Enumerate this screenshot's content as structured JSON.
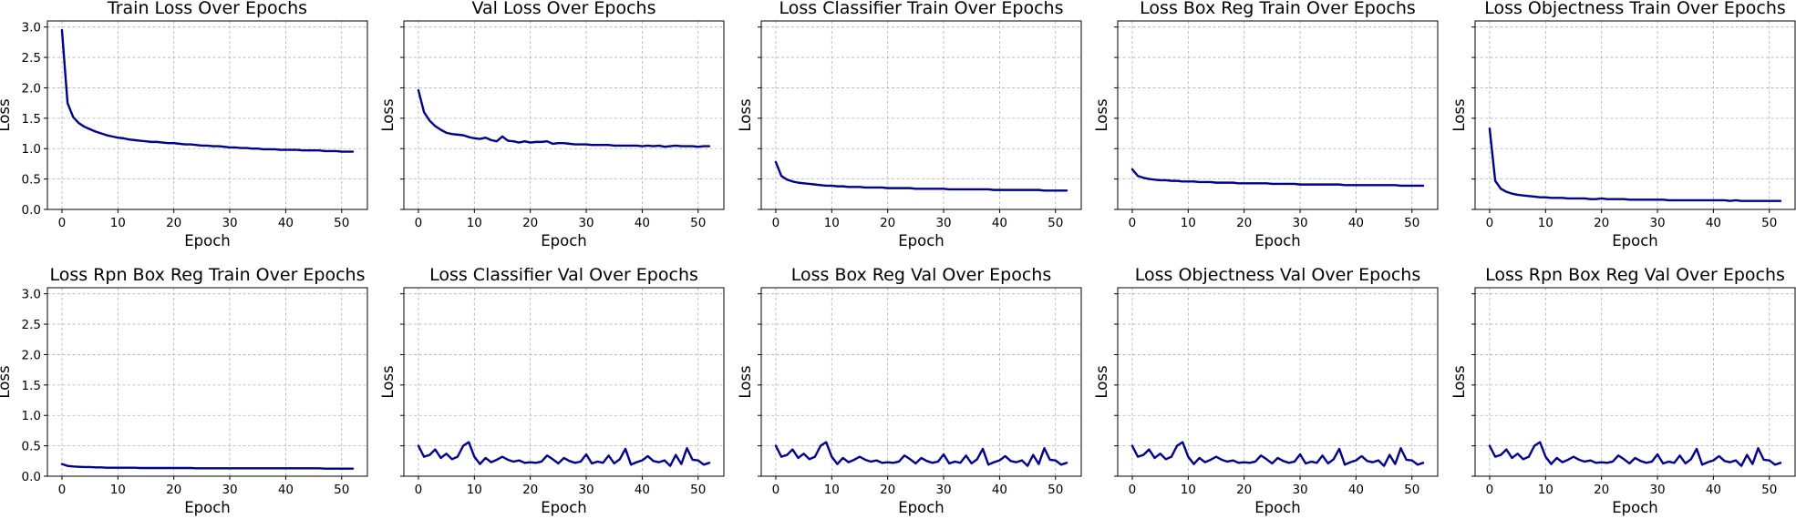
{
  "colors": {
    "line": "#00008b",
    "grid": "#b0b0b0"
  },
  "chart_data": [
    {
      "type": "line",
      "title": "Train Loss Over Epochs",
      "xlabel": "Epoch",
      "ylabel": "Loss",
      "x_ticks": [
        0,
        10,
        20,
        30,
        40,
        50
      ],
      "y_ticks": [
        "0.0",
        "0.5",
        "1.0",
        "1.5",
        "2.0",
        "2.5",
        "3.0"
      ],
      "y_tick_labels_shown": true,
      "xlim": [
        -2.6,
        54.6
      ],
      "ylim": [
        0,
        3.1
      ],
      "grid": true,
      "series": [
        {
          "values": [
            2.95,
            1.75,
            1.52,
            1.42,
            1.36,
            1.32,
            1.28,
            1.25,
            1.22,
            1.2,
            1.18,
            1.17,
            1.15,
            1.14,
            1.13,
            1.12,
            1.11,
            1.11,
            1.1,
            1.09,
            1.09,
            1.08,
            1.07,
            1.07,
            1.06,
            1.05,
            1.05,
            1.04,
            1.04,
            1.03,
            1.02,
            1.02,
            1.01,
            1.01,
            1.0,
            1.0,
            0.99,
            0.99,
            0.99,
            0.98,
            0.98,
            0.98,
            0.98,
            0.97,
            0.97,
            0.97,
            0.97,
            0.96,
            0.96,
            0.96,
            0.95,
            0.95,
            0.95
          ]
        }
      ]
    },
    {
      "type": "line",
      "title": "Val Loss Over Epochs",
      "xlabel": "Epoch",
      "ylabel": "Loss",
      "x_ticks": [
        0,
        10,
        20,
        30,
        40,
        50
      ],
      "y_ticks": [
        "0.0",
        "0.5",
        "1.0",
        "1.5",
        "2.0",
        "2.5",
        "3.0"
      ],
      "y_tick_labels_shown": false,
      "xlim": [
        -2.6,
        54.6
      ],
      "ylim": [
        0,
        3.1
      ],
      "grid": true,
      "series": [
        {
          "values": [
            1.96,
            1.6,
            1.46,
            1.37,
            1.31,
            1.26,
            1.24,
            1.23,
            1.22,
            1.19,
            1.17,
            1.16,
            1.18,
            1.14,
            1.12,
            1.2,
            1.13,
            1.12,
            1.1,
            1.12,
            1.1,
            1.11,
            1.11,
            1.12,
            1.08,
            1.09,
            1.09,
            1.08,
            1.07,
            1.07,
            1.07,
            1.06,
            1.06,
            1.06,
            1.06,
            1.05,
            1.05,
            1.05,
            1.05,
            1.05,
            1.04,
            1.05,
            1.04,
            1.05,
            1.03,
            1.04,
            1.05,
            1.04,
            1.04,
            1.04,
            1.03,
            1.04,
            1.04
          ]
        }
      ]
    },
    {
      "type": "line",
      "title": "Loss Classifier Train Over Epochs",
      "xlabel": "Epoch",
      "ylabel": "Loss",
      "x_ticks": [
        0,
        10,
        20,
        30,
        40,
        50
      ],
      "y_ticks": [
        "0.0",
        "0.5",
        "1.0",
        "1.5",
        "2.0",
        "2.5",
        "3.0"
      ],
      "y_tick_labels_shown": false,
      "xlim": [
        -2.6,
        54.6
      ],
      "ylim": [
        0,
        3.1
      ],
      "grid": true,
      "series": [
        {
          "values": [
            0.78,
            0.55,
            0.49,
            0.46,
            0.44,
            0.43,
            0.42,
            0.41,
            0.4,
            0.39,
            0.39,
            0.38,
            0.38,
            0.37,
            0.37,
            0.37,
            0.36,
            0.36,
            0.36,
            0.36,
            0.35,
            0.35,
            0.35,
            0.35,
            0.35,
            0.34,
            0.34,
            0.34,
            0.34,
            0.34,
            0.34,
            0.33,
            0.33,
            0.33,
            0.33,
            0.33,
            0.33,
            0.33,
            0.33,
            0.32,
            0.32,
            0.32,
            0.32,
            0.32,
            0.32,
            0.32,
            0.32,
            0.32,
            0.31,
            0.31,
            0.31,
            0.31,
            0.31
          ]
        }
      ]
    },
    {
      "type": "line",
      "title": "Loss Box Reg Train Over Epochs",
      "xlabel": "Epoch",
      "ylabel": "Loss",
      "x_ticks": [
        0,
        10,
        20,
        30,
        40,
        50
      ],
      "y_ticks": [
        "0.0",
        "0.5",
        "1.0",
        "1.5",
        "2.0",
        "2.5",
        "3.0"
      ],
      "y_tick_labels_shown": false,
      "xlim": [
        -2.6,
        54.6
      ],
      "ylim": [
        0,
        3.1
      ],
      "grid": true,
      "series": [
        {
          "values": [
            0.66,
            0.55,
            0.52,
            0.5,
            0.49,
            0.48,
            0.48,
            0.47,
            0.47,
            0.46,
            0.46,
            0.46,
            0.45,
            0.45,
            0.45,
            0.44,
            0.44,
            0.44,
            0.44,
            0.43,
            0.43,
            0.43,
            0.43,
            0.43,
            0.43,
            0.42,
            0.42,
            0.42,
            0.42,
            0.42,
            0.41,
            0.41,
            0.41,
            0.41,
            0.41,
            0.41,
            0.41,
            0.41,
            0.4,
            0.4,
            0.4,
            0.4,
            0.4,
            0.4,
            0.4,
            0.4,
            0.4,
            0.4,
            0.39,
            0.39,
            0.39,
            0.39,
            0.39
          ]
        }
      ]
    },
    {
      "type": "line",
      "title": "Loss Objectness Train Over Epochs",
      "xlabel": "Epoch",
      "ylabel": "Loss",
      "x_ticks": [
        0,
        10,
        20,
        30,
        40,
        50
      ],
      "y_ticks": [
        "0.0",
        "0.5",
        "1.0",
        "1.5",
        "2.0",
        "2.5",
        "3.0"
      ],
      "y_tick_labels_shown": false,
      "xlim": [
        -2.6,
        54.6
      ],
      "ylim": [
        0,
        3.1
      ],
      "grid": true,
      "series": [
        {
          "values": [
            1.33,
            0.47,
            0.34,
            0.29,
            0.26,
            0.24,
            0.23,
            0.22,
            0.21,
            0.2,
            0.2,
            0.19,
            0.19,
            0.19,
            0.18,
            0.18,
            0.18,
            0.18,
            0.17,
            0.17,
            0.18,
            0.17,
            0.17,
            0.17,
            0.17,
            0.16,
            0.16,
            0.16,
            0.16,
            0.16,
            0.16,
            0.16,
            0.15,
            0.15,
            0.15,
            0.15,
            0.15,
            0.15,
            0.15,
            0.15,
            0.15,
            0.15,
            0.15,
            0.14,
            0.15,
            0.14,
            0.14,
            0.14,
            0.14,
            0.14,
            0.14,
            0.14,
            0.14
          ]
        }
      ]
    },
    {
      "type": "line",
      "title": "Loss Rpn Box Reg Train Over Epochs",
      "xlabel": "Epoch",
      "ylabel": "Loss",
      "x_ticks": [
        0,
        10,
        20,
        30,
        40,
        50
      ],
      "y_ticks": [
        "0.0",
        "0.5",
        "1.0",
        "1.5",
        "2.0",
        "2.5",
        "3.0"
      ],
      "y_tick_labels_shown": true,
      "xlim": [
        -2.6,
        54.6
      ],
      "ylim": [
        0,
        3.1
      ],
      "grid": true,
      "series": [
        {
          "values": [
            0.2,
            0.17,
            0.16,
            0.155,
            0.15,
            0.15,
            0.145,
            0.145,
            0.14,
            0.14,
            0.14,
            0.14,
            0.14,
            0.14,
            0.135,
            0.135,
            0.135,
            0.135,
            0.135,
            0.135,
            0.135,
            0.135,
            0.135,
            0.135,
            0.13,
            0.13,
            0.13,
            0.13,
            0.13,
            0.13,
            0.13,
            0.13,
            0.13,
            0.13,
            0.13,
            0.13,
            0.13,
            0.13,
            0.13,
            0.13,
            0.13,
            0.13,
            0.13,
            0.13,
            0.13,
            0.13,
            0.13,
            0.125,
            0.125,
            0.125,
            0.125,
            0.125,
            0.125
          ]
        }
      ]
    },
    {
      "type": "line",
      "title": "Loss Classifier Val Over Epochs",
      "xlabel": "Epoch",
      "ylabel": "Loss",
      "x_ticks": [
        0,
        10,
        20,
        30,
        40,
        50
      ],
      "y_ticks": [
        "0.0",
        "0.5",
        "1.0",
        "1.5",
        "2.0",
        "2.5",
        "3.0"
      ],
      "y_tick_labels_shown": false,
      "xlim": [
        -2.6,
        54.6
      ],
      "ylim": [
        0,
        3.1
      ],
      "grid": true,
      "series": [
        {
          "values": [
            0.5,
            0.32,
            0.35,
            0.44,
            0.3,
            0.37,
            0.28,
            0.32,
            0.5,
            0.56,
            0.32,
            0.2,
            0.3,
            0.23,
            0.27,
            0.32,
            0.27,
            0.24,
            0.26,
            0.22,
            0.23,
            0.22,
            0.24,
            0.34,
            0.28,
            0.21,
            0.3,
            0.25,
            0.22,
            0.24,
            0.36,
            0.21,
            0.24,
            0.22,
            0.34,
            0.21,
            0.28,
            0.45,
            0.19,
            0.23,
            0.26,
            0.33,
            0.25,
            0.23,
            0.26,
            0.17,
            0.35,
            0.2,
            0.46,
            0.27,
            0.26,
            0.19,
            0.22
          ]
        }
      ]
    },
    {
      "type": "line",
      "title": "Loss Box Reg Val Over Epochs",
      "xlabel": "Epoch",
      "ylabel": "Loss",
      "x_ticks": [
        0,
        10,
        20,
        30,
        40,
        50
      ],
      "y_ticks": [
        "0.0",
        "0.5",
        "1.0",
        "1.5",
        "2.0",
        "2.5",
        "3.0"
      ],
      "y_tick_labels_shown": false,
      "xlim": [
        -2.6,
        54.6
      ],
      "ylim": [
        0,
        3.1
      ],
      "grid": true,
      "series": [
        {
          "values": [
            0.5,
            0.32,
            0.35,
            0.44,
            0.3,
            0.37,
            0.28,
            0.32,
            0.5,
            0.56,
            0.32,
            0.2,
            0.3,
            0.23,
            0.27,
            0.32,
            0.27,
            0.24,
            0.26,
            0.22,
            0.23,
            0.22,
            0.24,
            0.34,
            0.28,
            0.21,
            0.3,
            0.25,
            0.22,
            0.24,
            0.36,
            0.21,
            0.24,
            0.22,
            0.34,
            0.21,
            0.28,
            0.45,
            0.19,
            0.23,
            0.26,
            0.33,
            0.25,
            0.23,
            0.26,
            0.17,
            0.35,
            0.2,
            0.46,
            0.27,
            0.26,
            0.19,
            0.22
          ]
        }
      ]
    },
    {
      "type": "line",
      "title": "Loss Objectness Val Over Epochs",
      "xlabel": "Epoch",
      "ylabel": "Loss",
      "x_ticks": [
        0,
        10,
        20,
        30,
        40,
        50
      ],
      "y_ticks": [
        "0.0",
        "0.5",
        "1.0",
        "1.5",
        "2.0",
        "2.5",
        "3.0"
      ],
      "y_tick_labels_shown": false,
      "xlim": [
        -2.6,
        54.6
      ],
      "ylim": [
        0,
        3.1
      ],
      "grid": true,
      "series": [
        {
          "values": [
            0.5,
            0.32,
            0.35,
            0.44,
            0.3,
            0.37,
            0.28,
            0.32,
            0.5,
            0.56,
            0.32,
            0.2,
            0.3,
            0.23,
            0.27,
            0.32,
            0.27,
            0.24,
            0.26,
            0.22,
            0.23,
            0.22,
            0.24,
            0.34,
            0.28,
            0.21,
            0.3,
            0.25,
            0.22,
            0.24,
            0.36,
            0.21,
            0.24,
            0.22,
            0.34,
            0.21,
            0.28,
            0.45,
            0.19,
            0.23,
            0.26,
            0.33,
            0.25,
            0.23,
            0.26,
            0.17,
            0.35,
            0.2,
            0.46,
            0.27,
            0.26,
            0.19,
            0.22
          ]
        }
      ]
    },
    {
      "type": "line",
      "title": "Loss Rpn Box Reg Val Over Epochs",
      "xlabel": "Epoch",
      "ylabel": "Loss",
      "x_ticks": [
        0,
        10,
        20,
        30,
        40,
        50
      ],
      "y_ticks": [
        "0.0",
        "0.5",
        "1.0",
        "1.5",
        "2.0",
        "2.5",
        "3.0"
      ],
      "y_tick_labels_shown": false,
      "xlim": [
        -2.6,
        54.6
      ],
      "ylim": [
        0,
        3.1
      ],
      "grid": true,
      "series": [
        {
          "values": [
            0.5,
            0.32,
            0.35,
            0.44,
            0.3,
            0.37,
            0.28,
            0.32,
            0.5,
            0.56,
            0.32,
            0.2,
            0.3,
            0.23,
            0.27,
            0.32,
            0.27,
            0.24,
            0.26,
            0.22,
            0.23,
            0.22,
            0.24,
            0.34,
            0.28,
            0.21,
            0.3,
            0.25,
            0.22,
            0.24,
            0.36,
            0.21,
            0.24,
            0.22,
            0.34,
            0.21,
            0.28,
            0.45,
            0.19,
            0.23,
            0.26,
            0.33,
            0.25,
            0.23,
            0.26,
            0.17,
            0.35,
            0.2,
            0.46,
            0.27,
            0.26,
            0.19,
            0.22
          ]
        }
      ]
    }
  ]
}
